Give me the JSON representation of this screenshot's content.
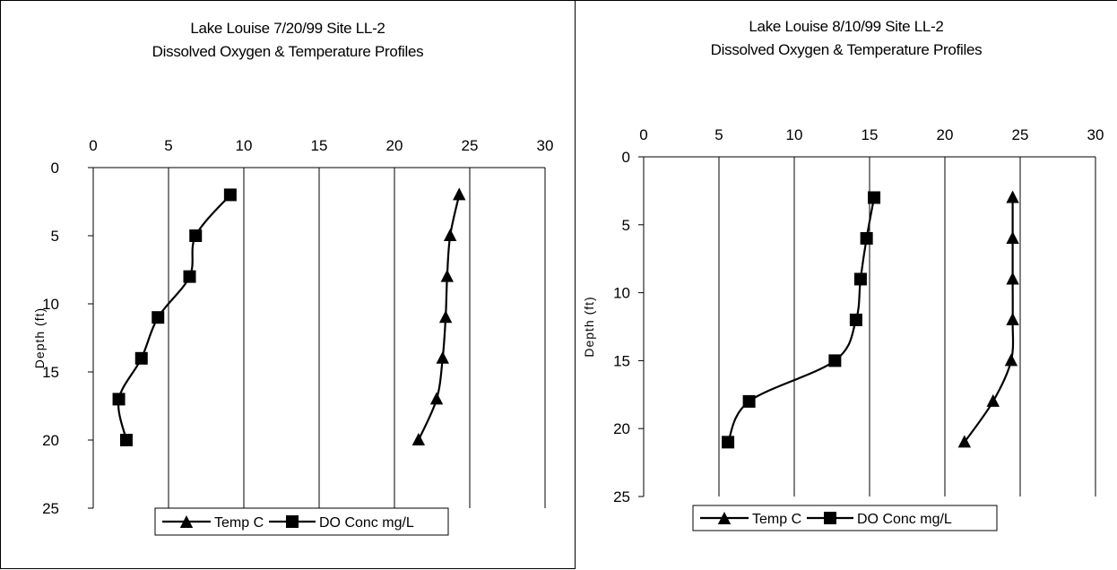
{
  "chart_data": [
    {
      "type": "line",
      "title": "Lake Louise 7/20/99 Site LL-2",
      "subtitle": "Dissolved Oxygen & Temperature Profiles",
      "xlabel": "",
      "ylabel": "Depth (ft)",
      "xlim": [
        0,
        30
      ],
      "ylim": [
        0,
        25
      ],
      "y_inverted": true,
      "x_axis_position": "top",
      "x_ticks": [
        "0",
        "5",
        "10",
        "15",
        "20",
        "25",
        "30"
      ],
      "y_ticks": [
        "0",
        "5",
        "10",
        "15",
        "20",
        "25"
      ],
      "grid": "vertical",
      "legend_position": "bottom",
      "series": [
        {
          "name": "Temp C",
          "marker": "triangle",
          "x": [
            24.3,
            23.7,
            23.5,
            23.4,
            23.2,
            22.8,
            21.6
          ],
          "y": [
            2,
            5,
            8,
            11,
            14,
            17,
            20
          ]
        },
        {
          "name": "DO Conc mg/L",
          "marker": "square",
          "x": [
            9.1,
            6.8,
            6.4,
            4.3,
            3.2,
            1.7,
            2.2
          ],
          "y": [
            2,
            5,
            8,
            11,
            14,
            17,
            20
          ]
        }
      ]
    },
    {
      "type": "line",
      "title": "Lake Louise 8/10/99 Site LL-2",
      "subtitle": "Dissolved Oxygen & Temperature Profiles",
      "xlabel": "",
      "ylabel": "Depth (ft)",
      "xlim": [
        0,
        30
      ],
      "ylim": [
        0,
        25
      ],
      "y_inverted": true,
      "x_axis_position": "top",
      "x_ticks": [
        "0",
        "5",
        "10",
        "15",
        "20",
        "25",
        "30"
      ],
      "y_ticks": [
        "0",
        "5",
        "10",
        "15",
        "20",
        "25"
      ],
      "grid": "vertical",
      "legend_position": "bottom",
      "series": [
        {
          "name": "Temp C",
          "marker": "triangle",
          "x": [
            24.5,
            24.5,
            24.5,
            24.5,
            24.4,
            23.2,
            21.3
          ],
          "y": [
            3,
            6,
            9,
            12,
            15,
            18,
            21
          ]
        },
        {
          "name": "DO Conc mg/L",
          "marker": "square",
          "x": [
            15.3,
            14.8,
            14.4,
            14.1,
            12.7,
            7.0,
            5.6
          ],
          "y": [
            3,
            6,
            9,
            12,
            15,
            18,
            21
          ]
        }
      ]
    }
  ]
}
